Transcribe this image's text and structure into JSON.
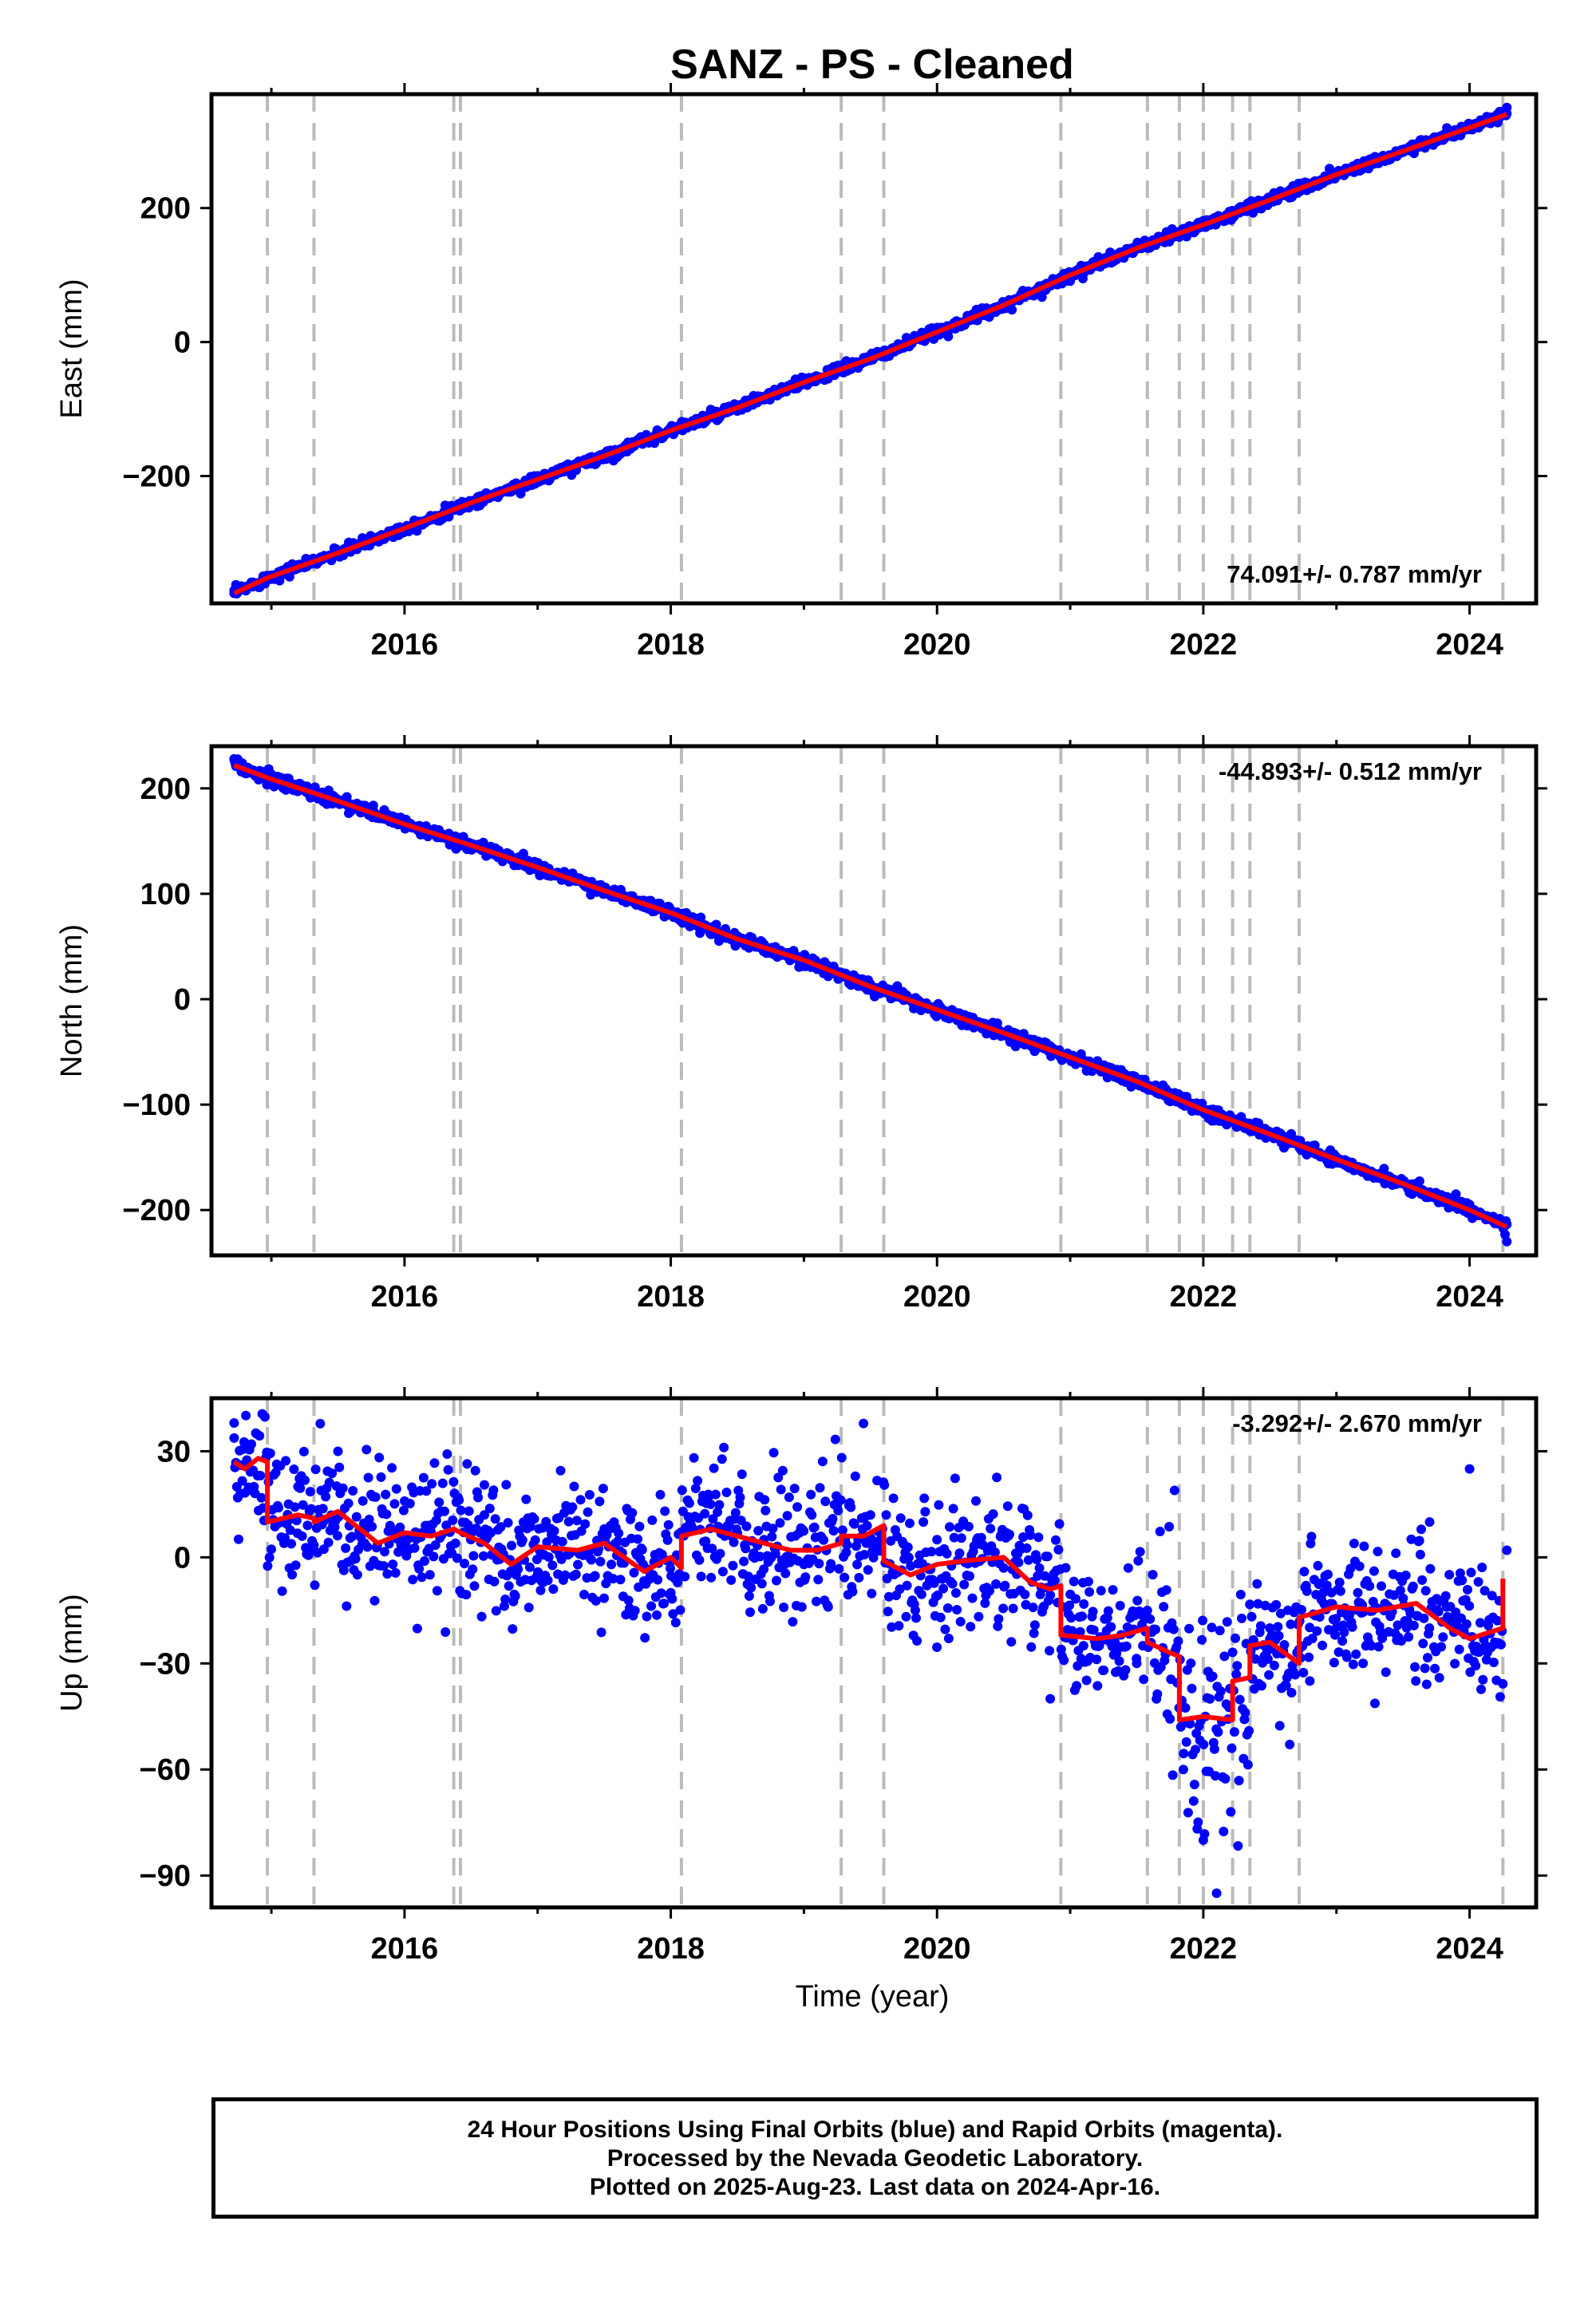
{
  "title": "SANZ  - PS - Cleaned",
  "xlabel": "Time (year)",
  "footer": [
    "24 Hour Positions Using Final Orbits (blue) and Rapid Orbits (magenta).",
    "Processed by the Nevada Geodetic Laboratory.",
    "Plotted on 2025-Aug-23. Last data on 2024-Apr-16."
  ],
  "colors": {
    "data": "#0000ff",
    "model": "#ff0000",
    "breaks": "#bbbbbb",
    "axis": "#000000"
  },
  "chart_data": [
    {
      "type": "scatter",
      "ylabel": "East (mm)",
      "rate_label": "74.091+/- 0.787 mm/yr",
      "xlim": [
        2014.55,
        2024.5
      ],
      "ylim": [
        -390,
        370
      ],
      "xticks": [
        2016,
        2018,
        2020,
        2022,
        2024
      ],
      "yticks": [
        200,
        0,
        -200
      ],
      "ytick_labels": [
        "200",
        "0",
        "−200"
      ],
      "breaks": [
        2014.97,
        2015.32,
        2016.37,
        2016.42,
        2018.08,
        2019.28,
        2019.6,
        2020.93,
        2021.58,
        2021.82,
        2022.0,
        2022.22,
        2022.35,
        2022.72,
        2024.25
      ],
      "model": {
        "x": [
          2014.72,
          2014.97,
          2015.5,
          2016.0,
          2016.5,
          2017.0,
          2017.5,
          2018.0,
          2018.5,
          2019.0,
          2019.5,
          2020.0,
          2020.5,
          2021.0,
          2021.5,
          2022.0,
          2022.5,
          2023.0,
          2023.5,
          2024.0,
          2024.28
        ],
        "y": [
          -375,
          -352,
          -315,
          -278,
          -240,
          -205,
          -170,
          -132,
          -98,
          -60,
          -25,
          15,
          55,
          100,
          140,
          175,
          212,
          250,
          285,
          320,
          340
        ]
      },
      "data_points": {
        "x": [
          2014.72,
          2015.1,
          2015.6,
          2016.1,
          2016.7,
          2017.2,
          2017.7,
          2018.2,
          2018.7,
          2019.2,
          2019.7,
          2020.2,
          2020.7,
          2021.2,
          2021.7,
          2022.2,
          2022.7,
          2023.2,
          2023.7,
          2024.28
        ],
        "y": [
          -375,
          -340,
          -308,
          -270,
          -225,
          -190,
          -155,
          -118,
          -82,
          -45,
          -10,
          30,
          70,
          115,
          150,
          190,
          225,
          262,
          298,
          350
        ]
      }
    },
    {
      "type": "scatter",
      "ylabel": "North (mm)",
      "rate_label": "-44.893+/- 0.512 mm/yr",
      "xlim": [
        2014.55,
        2024.5
      ],
      "ylim": [
        -243,
        240
      ],
      "xticks": [
        2016,
        2018,
        2020,
        2022,
        2024
      ],
      "yticks": [
        200,
        100,
        0,
        -100,
        -200
      ],
      "ytick_labels": [
        "200",
        "100",
        "0",
        "−100",
        "−200"
      ],
      "breaks": [
        2014.97,
        2015.32,
        2016.37,
        2016.42,
        2018.08,
        2019.28,
        2019.6,
        2020.93,
        2021.58,
        2021.82,
        2022.0,
        2022.22,
        2022.35,
        2022.72,
        2024.25
      ],
      "model": {
        "x": [
          2014.72,
          2014.97,
          2015.5,
          2016.0,
          2016.5,
          2017.0,
          2017.5,
          2018.0,
          2018.5,
          2019.0,
          2019.5,
          2020.0,
          2020.5,
          2021.0,
          2021.5,
          2022.0,
          2022.5,
          2023.0,
          2023.5,
          2024.0,
          2024.28
        ],
        "y": [
          222,
          210,
          188,
          166,
          146,
          125,
          103,
          82,
          57,
          37,
          12,
          -10,
          -32,
          -55,
          -78,
          -105,
          -128,
          -152,
          -175,
          -200,
          -216
        ]
      },
      "data_points": {
        "x": [
          2014.72,
          2015.1,
          2015.6,
          2016.1,
          2016.7,
          2017.2,
          2017.7,
          2018.2,
          2018.7,
          2019.2,
          2019.7,
          2020.2,
          2020.7,
          2021.2,
          2021.7,
          2022.2,
          2022.7,
          2023.2,
          2023.7,
          2024.28
        ],
        "y": [
          228,
          205,
          185,
          162,
          140,
          118,
          98,
          75,
          52,
          30,
          8,
          -15,
          -38,
          -62,
          -85,
          -110,
          -135,
          -160,
          -183,
          -230
        ]
      }
    },
    {
      "type": "scatter",
      "ylabel": "Up (mm)",
      "rate_label": "-3.292+/- 2.670 mm/yr",
      "xlim": [
        2014.55,
        2024.5
      ],
      "ylim": [
        -99,
        45
      ],
      "xticks": [
        2016,
        2018,
        2020,
        2022,
        2024
      ],
      "yticks": [
        30,
        0,
        -30,
        -60,
        -90
      ],
      "ytick_labels": [
        "30",
        "0",
        "−30",
        "−60",
        "−90"
      ],
      "breaks": [
        2014.97,
        2015.32,
        2016.37,
        2016.42,
        2018.08,
        2019.28,
        2019.6,
        2020.93,
        2021.58,
        2021.82,
        2022.0,
        2022.22,
        2022.35,
        2022.72,
        2024.25
      ],
      "model": {
        "x": [
          2014.72,
          2014.8,
          2014.9,
          2014.97,
          2014.97,
          2015.2,
          2015.32,
          2015.32,
          2015.5,
          2015.8,
          2016.0,
          2016.2,
          2016.37,
          2016.42,
          2016.6,
          2016.8,
          2017.0,
          2017.3,
          2017.5,
          2017.8,
          2018.0,
          2018.08,
          2018.08,
          2018.3,
          2018.6,
          2018.9,
          2019.1,
          2019.28,
          2019.28,
          2019.45,
          2019.6,
          2019.6,
          2019.8,
          2020.0,
          2020.2,
          2020.5,
          2020.7,
          2020.85,
          2020.93,
          2020.93,
          2021.2,
          2021.4,
          2021.58,
          2021.58,
          2021.75,
          2021.82,
          2021.82,
          2022.0,
          2022.22,
          2022.22,
          2022.35,
          2022.35,
          2022.5,
          2022.72,
          2022.72,
          2023.0,
          2023.3,
          2023.6,
          2023.85,
          2024.0,
          2024.25,
          2024.25
        ],
        "y": [
          27,
          25,
          28,
          27,
          10,
          12,
          11,
          10,
          13,
          4,
          7,
          6,
          8,
          7,
          4,
          -2,
          3,
          2,
          4,
          -4,
          0,
          -3,
          6,
          8,
          5,
          2,
          2,
          4,
          6,
          6,
          9,
          -1,
          -5,
          -2,
          -1,
          0,
          -7,
          -9,
          -8,
          -22,
          -23,
          -22,
          -20,
          -24,
          -27,
          -28,
          -46,
          -45,
          -46,
          -35,
          -34,
          -25,
          -24,
          -30,
          -17,
          -14,
          -15,
          -13,
          -20,
          -23,
          -20,
          -6
        ]
      },
      "data_points": {
        "x": [
          2014.72,
          2015.2,
          2015.5,
          2016.0,
          2016.6,
          2017.0,
          2017.5,
          2018.0,
          2018.3,
          2018.7,
          2019.0,
          2019.5,
          2020.0,
          2020.5,
          2020.85,
          2021.1,
          2021.5,
          2021.85,
          2022.0,
          2022.1,
          2022.5,
          2022.8,
          2023.2,
          2023.7,
          2024.0,
          2024.28
        ],
        "y": [
          38,
          20,
          30,
          2,
          12,
          -5,
          8,
          -10,
          15,
          5,
          -2,
          12,
          5,
          -3,
          -40,
          -25,
          -30,
          -60,
          -80,
          -95,
          -20,
          -35,
          -30,
          10,
          25,
          2
        ]
      }
    }
  ]
}
